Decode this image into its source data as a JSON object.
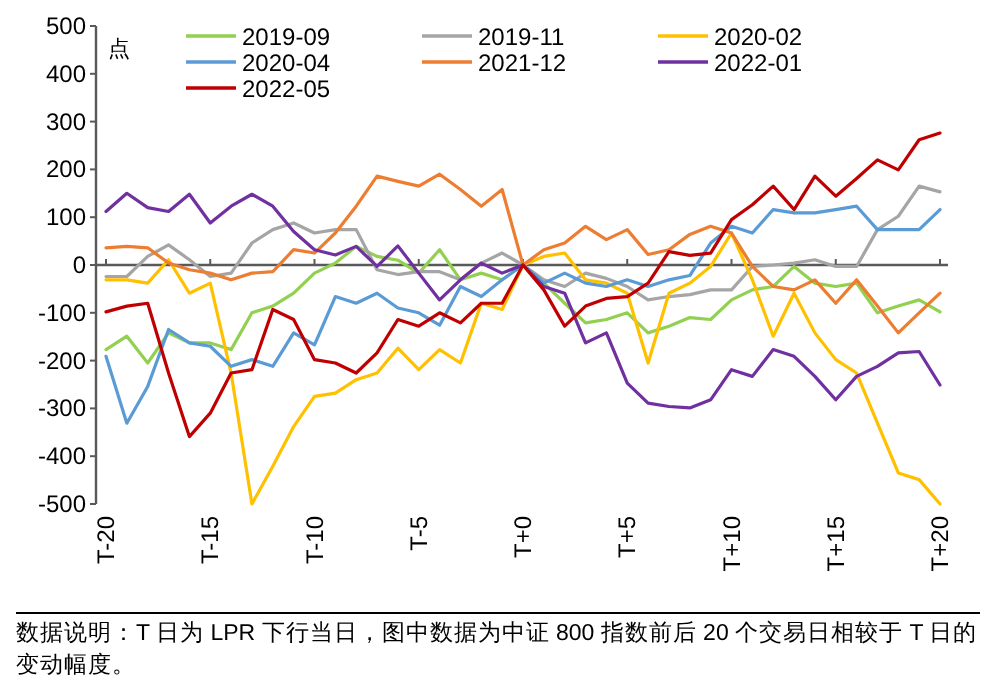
{
  "chart_data": {
    "type": "line",
    "ylabel": "点",
    "legend": "top",
    "categories": [
      "T-20",
      null,
      null,
      null,
      null,
      "T-15",
      null,
      null,
      null,
      null,
      "T-10",
      null,
      null,
      null,
      null,
      "T-5",
      null,
      null,
      null,
      null,
      "T+0",
      null,
      null,
      null,
      null,
      "T+5",
      null,
      null,
      null,
      null,
      "T+10",
      null,
      null,
      null,
      null,
      "T+15",
      null,
      null,
      null,
      null,
      "T+20"
    ],
    "ylim": [
      -500,
      500
    ],
    "yticks": [
      -500,
      -400,
      -300,
      -200,
      -100,
      0,
      100,
      200,
      300,
      400,
      500
    ],
    "series": [
      {
        "name": "2019-09",
        "color": "#92d050",
        "values": [
          -177,
          -149,
          -205,
          -142,
          -163,
          -163,
          -177,
          -100,
          -86,
          -59,
          -17,
          4,
          39,
          18,
          10,
          -17,
          32,
          -31,
          -17,
          -31,
          0,
          -38,
          -80,
          -121,
          -114,
          -100,
          -142,
          -128,
          -110,
          -114,
          -73,
          -52,
          -45,
          -3,
          -38,
          -45,
          -38,
          -100,
          -86,
          -73,
          -98
        ]
      },
      {
        "name": "2019-11",
        "color": "#a5a5a5",
        "values": [
          -24,
          -24,
          18,
          42,
          11,
          -24,
          -17,
          46,
          74,
          88,
          67,
          74,
          74,
          -10,
          -20,
          -14,
          -14,
          -31,
          4,
          25,
          0,
          -31,
          -45,
          -17,
          -28,
          -45,
          -73,
          -66,
          -62,
          -52,
          -52,
          -3,
          0,
          4,
          11,
          -3,
          -3,
          74,
          102,
          165,
          153
        ]
      },
      {
        "name": "2020-02",
        "color": "#ffc000",
        "values": [
          -31,
          -31,
          -38,
          11,
          -59,
          -38,
          -226,
          -500,
          -421,
          -338,
          -275,
          -268,
          -240,
          -226,
          -174,
          -219,
          -177,
          -205,
          -80,
          -93,
          0,
          18,
          25,
          -31,
          -38,
          -59,
          -205,
          -59,
          -38,
          -3,
          67,
          -31,
          -149,
          -59,
          -142,
          -198,
          -226,
          -331,
          -435,
          -449,
          -500
        ]
      },
      {
        "name": "2020-04",
        "color": "#5b9bd5",
        "values": [
          -191,
          -331,
          -254,
          -135,
          -163,
          -170,
          -212,
          -198,
          -212,
          -142,
          -167,
          -66,
          -80,
          -59,
          -90,
          -100,
          -126,
          -45,
          -66,
          -31,
          0,
          -38,
          -17,
          -38,
          -45,
          -31,
          -45,
          -31,
          -22,
          46,
          81,
          67,
          116,
          109,
          109,
          116,
          123,
          74,
          74,
          74,
          116
        ]
      },
      {
        "name": "2021-12",
        "color": "#ed7d31",
        "values": [
          36,
          39,
          36,
          4,
          -10,
          -17,
          -31,
          -17,
          -14,
          32,
          25,
          67,
          123,
          186,
          175,
          165,
          190,
          158,
          123,
          158,
          0,
          32,
          46,
          81,
          53,
          74,
          22,
          32,
          64,
          81,
          67,
          -3,
          -45,
          -52,
          -31,
          -80,
          -31,
          -86,
          -142,
          -100,
          -59
        ]
      },
      {
        "name": "2022-01",
        "color": "#7030a0",
        "values": [
          112,
          150,
          120,
          112,
          148,
          88,
          123,
          148,
          123,
          70,
          32,
          21,
          39,
          -3,
          40,
          -17,
          -73,
          -31,
          4,
          -17,
          0,
          -45,
          -59,
          -163,
          -142,
          -247,
          -289,
          -296,
          -299,
          -282,
          -219,
          -233,
          -177,
          -191,
          -233,
          -282,
          -233,
          -212,
          -184,
          -181,
          -251
        ]
      },
      {
        "name": "2022-05",
        "color": "#c00000",
        "values": [
          -98,
          -86,
          -80,
          -226,
          -359,
          -310,
          -226,
          -219,
          -93,
          -114,
          -198,
          -205,
          -226,
          -184,
          -114,
          -128,
          -100,
          -121,
          -80,
          -80,
          0,
          -52,
          -128,
          -86,
          -70,
          -66,
          -38,
          28,
          20,
          25,
          95,
          126,
          165,
          116,
          186,
          144,
          181,
          220,
          199,
          262,
          276
        ]
      }
    ],
    "annotations": [
      "数据说明：T 日为 LPR 下行当日，图中数据为中证 800 指数前后 20 个交易日相较于 T 日的变动幅度。"
    ]
  }
}
